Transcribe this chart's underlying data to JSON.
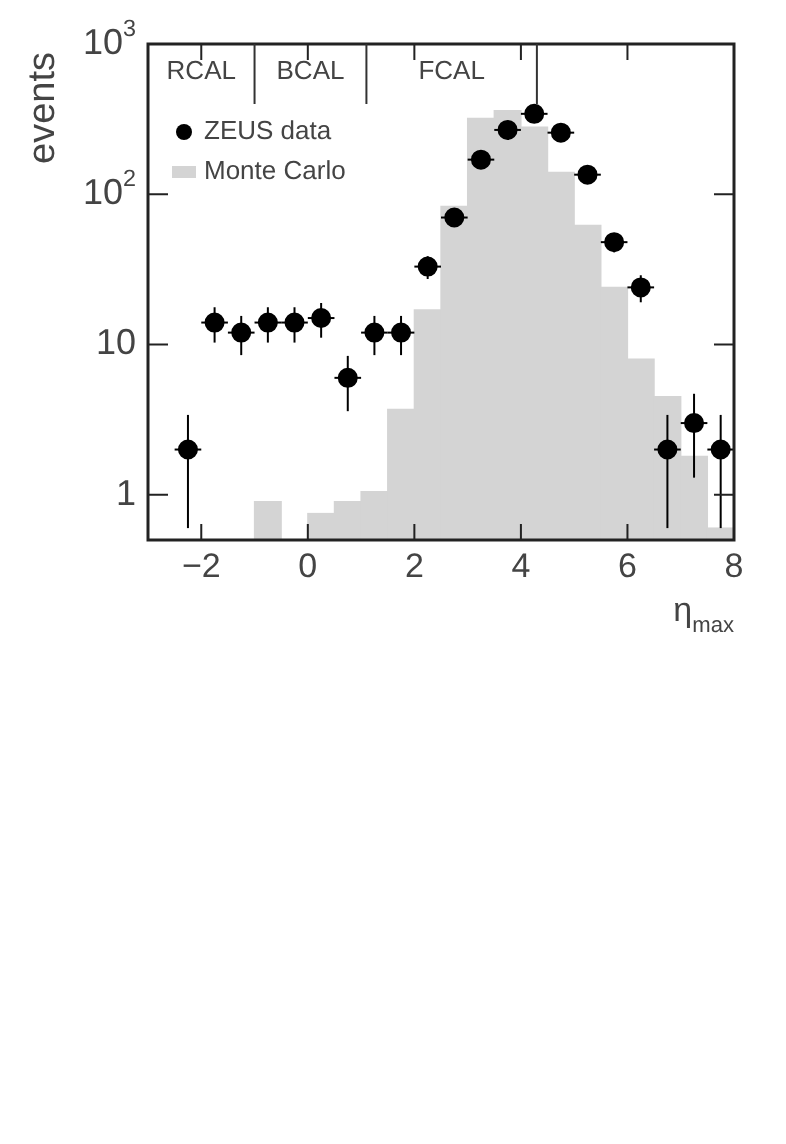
{
  "chart_data": {
    "type": "scatter",
    "ylabel": "events",
    "xlabel": "η$_{max}$",
    "annotations": [
      "RCAL",
      "BCAL",
      "FCAL"
    ],
    "ref_lines": [
      {
        "axis": "x",
        "value": -1
      },
      {
        "axis": "x",
        "value": 1.1
      },
      {
        "axis": "x",
        "value": 4.3
      }
    ],
    "xlim": [
      -3,
      8
    ],
    "xticks": [
      -2,
      0,
      2,
      4,
      6,
      8
    ],
    "ylim": [
      0.5,
      1000
    ],
    "yticks": [
      1,
      10,
      {
        "value": 100,
        "label": "10$^{2}$"
      },
      {
        "value": 1000,
        "label": "10$^{3}$"
      }
    ],
    "log": "y",
    "grid": false,
    "legend": "top left",
    "marker": "circle",
    "series": [
      {
        "name": "ZEUS data",
        "type": "scatter",
        "color": "#000000",
        "x": [
          -2.25,
          -1.75,
          -1.25,
          -0.75,
          -0.25,
          0.25,
          0.75,
          1.25,
          1.75,
          2.25,
          2.75,
          3.25,
          3.75,
          4.25,
          4.75,
          5.25,
          5.75,
          6.25,
          6.75,
          7.25,
          7.75
        ],
        "values": [
          2,
          14,
          12,
          14,
          14,
          15,
          6,
          12,
          12,
          33,
          70,
          170,
          268,
          343,
          257,
          135,
          48,
          24,
          2,
          3,
          2
        ],
        "errors": [
          1.4,
          3.7,
          3.5,
          3.7,
          3.7,
          3.9,
          2.4,
          3.5,
          3.5,
          5.7,
          8.4,
          13,
          16,
          18,
          16,
          11.6,
          6.9,
          4.9,
          1.4,
          1.7,
          1.4
        ],
        "xerrors": [
          0.25,
          0.25,
          0.25,
          0.25,
          0.25,
          0.25,
          0.25,
          0.25,
          0.25,
          0.25,
          0.25,
          0.25,
          0.25,
          0.25,
          0.25,
          0.25,
          0.25,
          0.25,
          0.25,
          0.25,
          0.25
        ]
      },
      {
        "name": "Monte Carlo",
        "type": "histogram",
        "color": "#d4d4d4",
        "bins": [
          -1,
          -0.5,
          0,
          0.5,
          1,
          1.5,
          2,
          2.5,
          3,
          3.5,
          4,
          4.5,
          5,
          5.5,
          6,
          6.5,
          7,
          7.5,
          8
        ],
        "values": [
          0.9,
          null,
          0.75,
          0.9,
          1.05,
          3.7,
          17,
          83,
          320,
          360,
          280,
          140,
          62,
          24,
          8,
          4.5,
          1.8,
          0.6
        ]
      }
    ]
  }
}
